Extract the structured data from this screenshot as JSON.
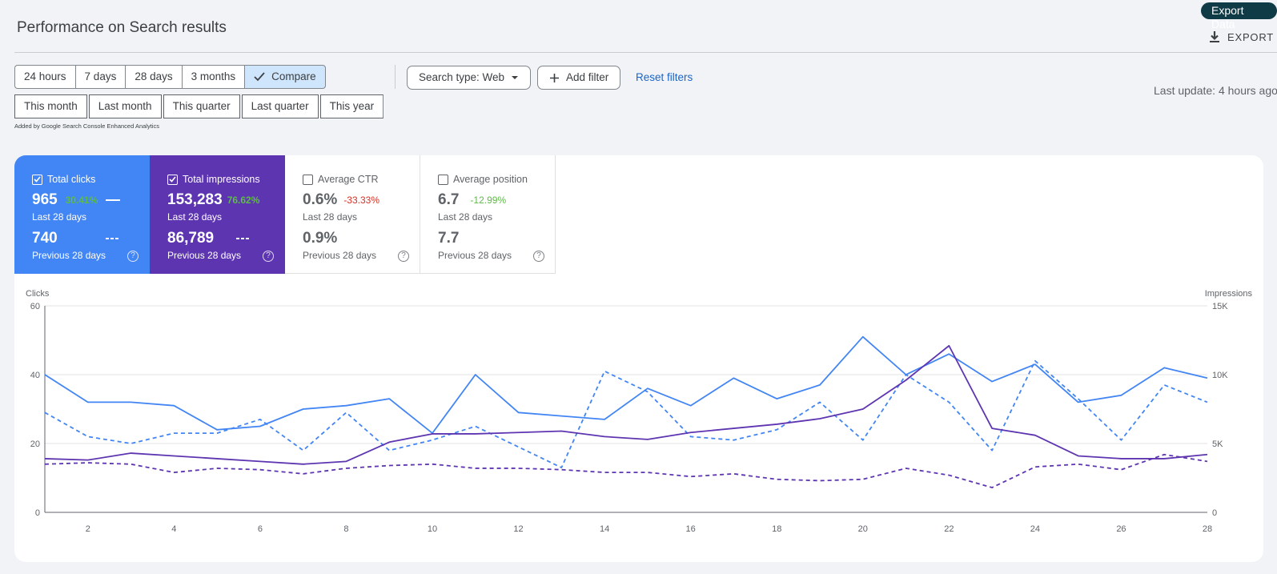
{
  "header": {
    "title": "Performance on Search results",
    "export_data_label": "Export Data",
    "export_label": "EXPORT",
    "last_update": "Last update: 4 hours ago"
  },
  "filters": {
    "range_buttons": [
      "24 hours",
      "7 days",
      "28 days",
      "3 months"
    ],
    "compare_label": "Compare",
    "period_buttons": [
      "This month",
      "Last month",
      "This quarter",
      "Last quarter",
      "This year"
    ],
    "search_type": "Search type: Web",
    "add_filter": "Add filter",
    "reset_filters": "Reset filters",
    "added_by": "Added by Google Search Console Enhanced Analytics"
  },
  "metrics": [
    {
      "label": "Total clicks",
      "checked": true,
      "value": "965",
      "change": "30.41%",
      "period": "Last 28 days",
      "prev_value": "740",
      "prev_period": "Previous 28 days"
    },
    {
      "label": "Total impressions",
      "checked": true,
      "value": "153,283",
      "change": "76.62%",
      "period": "Last 28 days",
      "prev_value": "86,789",
      "prev_period": "Previous 28 days"
    },
    {
      "label": "Average CTR",
      "checked": false,
      "value": "0.6%",
      "change": "-33.33%",
      "period": "Last 28 days",
      "prev_value": "0.9%",
      "prev_period": "Previous 28 days"
    },
    {
      "label": "Average position",
      "checked": false,
      "value": "6.7",
      "change": "-12.99%",
      "period": "Last 28 days",
      "prev_value": "7.7",
      "prev_period": "Previous 28 days"
    }
  ],
  "colors": {
    "clicks": "#4285f4",
    "impressions": "#5e35b1",
    "negative": "#d93025",
    "positive": "#5dbb46"
  },
  "chart_data": {
    "type": "line",
    "y_left_label": "Clicks",
    "y_right_label": "Impressions",
    "y_left_ticks": [
      "0",
      "20",
      "40",
      "60"
    ],
    "y_right_ticks": [
      "0",
      "5K",
      "10K",
      "15K"
    ],
    "y_left_range": [
      0,
      60
    ],
    "y_right_range": [
      0,
      15000
    ],
    "x_ticks": [
      "2",
      "4",
      "6",
      "8",
      "10",
      "12",
      "14",
      "16",
      "18",
      "20",
      "22",
      "24",
      "26",
      "28"
    ],
    "x": [
      1,
      2,
      3,
      4,
      5,
      6,
      7,
      8,
      9,
      10,
      11,
      12,
      13,
      14,
      15,
      16,
      17,
      18,
      19,
      20,
      21,
      22,
      23,
      24,
      25,
      26,
      27,
      28
    ],
    "series": [
      {
        "axis": "left",
        "style": "solid",
        "values": [
          40,
          32,
          32,
          31,
          24,
          25,
          30,
          31,
          33,
          23,
          40,
          29,
          28,
          27,
          36,
          31,
          39,
          33,
          37,
          51,
          40,
          46,
          38,
          43,
          32,
          34,
          42,
          39
        ]
      },
      {
        "axis": "left",
        "style": "dashed",
        "values": [
          29,
          22,
          20,
          23,
          23,
          27,
          18,
          29,
          18,
          21,
          25,
          19,
          13,
          41,
          35,
          22,
          21,
          24,
          32,
          21,
          40,
          32,
          18,
          44,
          33,
          21,
          37,
          32
        ]
      },
      {
        "axis": "right",
        "style": "solid",
        "values": [
          3900,
          3800,
          4300,
          4100,
          3900,
          3700,
          3500,
          3700,
          5100,
          5700,
          5700,
          5800,
          5900,
          5500,
          5300,
          5800,
          6100,
          6400,
          6800,
          7500,
          9600,
          12100,
          6100,
          5600,
          4100,
          3900,
          3900,
          4200
        ]
      },
      {
        "axis": "right",
        "style": "dashed",
        "values": [
          3500,
          3600,
          3500,
          2900,
          3200,
          3100,
          2800,
          3200,
          3400,
          3500,
          3200,
          3200,
          3100,
          2900,
          2900,
          2600,
          2800,
          2400,
          2300,
          2400,
          3200,
          2700,
          1800,
          3300,
          3500,
          3100,
          4200,
          3700
        ]
      }
    ],
    "grid": true
  }
}
